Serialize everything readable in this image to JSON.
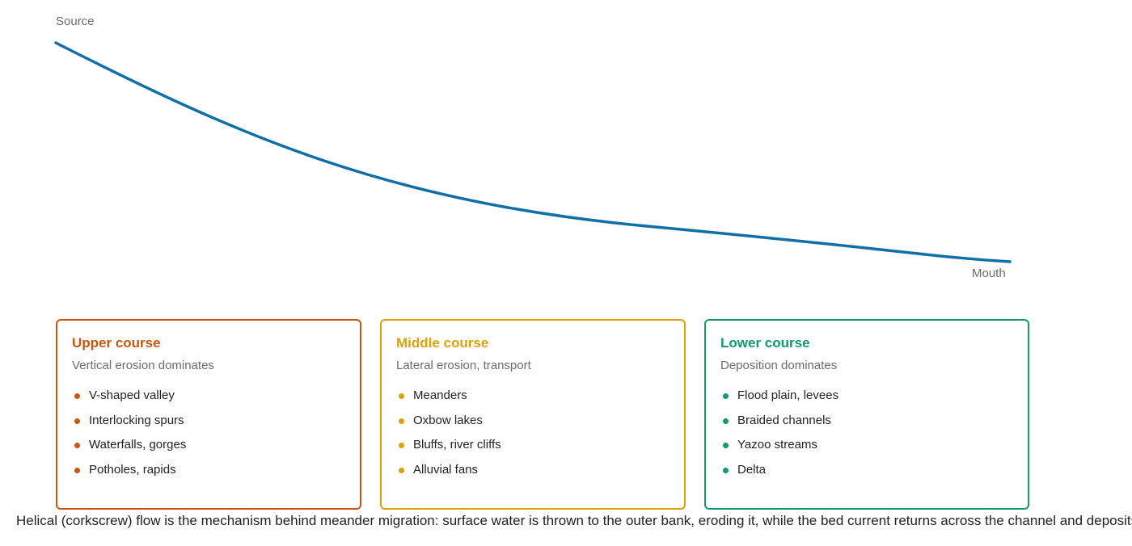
{
  "labels": {
    "start": "Source",
    "end": "Mouth"
  },
  "cards": [
    {
      "title": "Upper course",
      "subtitle": "Vertical erosion dominates",
      "color": "#c8560e",
      "items": [
        "V-shaped valley",
        "Interlocking spurs",
        "Waterfalls, gorges",
        "Potholes, rapids"
      ]
    },
    {
      "title": "Middle course",
      "subtitle": "Lateral erosion, transport",
      "color": "#e0a106",
      "items": [
        "Meanders",
        "Oxbow lakes",
        "Bluffs, river cliffs",
        "Alluvial fans"
      ]
    },
    {
      "title": "Lower course",
      "subtitle": "Deposition dominates",
      "color": "#109a6e",
      "items": [
        "Flood plain, levees",
        "Braided channels",
        "Yazoo streams",
        "Delta"
      ]
    }
  ],
  "caption": "Helical (corkscrew) flow is the mechanism behind meander migration: surface water is thrown to the outer bank, eroding it, while the bed current returns across the channel and deposits"
}
